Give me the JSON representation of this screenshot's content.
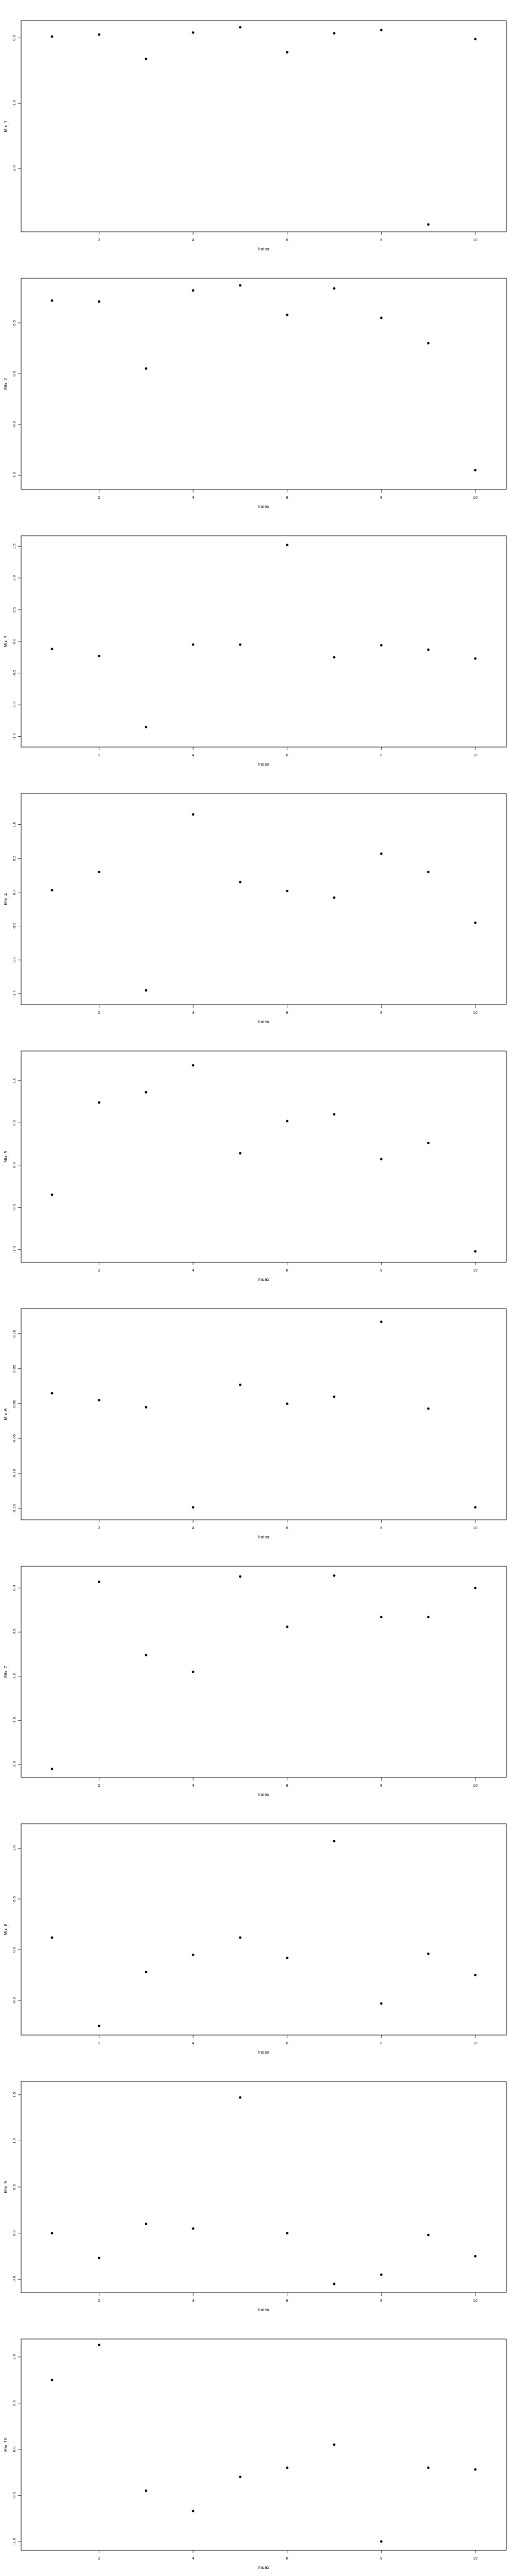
{
  "chart_data": [
    {
      "type": "scatter",
      "xlabel": "Index",
      "ylabel": "Mix_1",
      "xlim": [
        1,
        10
      ],
      "x_ticks": [
        2,
        4,
        6,
        8,
        10
      ],
      "x_tick_labels": [
        "2",
        "4",
        "6",
        "8",
        "10"
      ],
      "ylim": [
        -2.9,
        0.2
      ],
      "y_ticks": [
        0,
        -1,
        -2
      ],
      "y_tick_labels": [
        "0.0",
        "-1.0",
        "-2.0"
      ],
      "x": [
        1,
        2,
        3,
        4,
        5,
        6,
        7,
        8,
        9,
        10
      ],
      "y": [
        0.02,
        0.05,
        -0.32,
        0.08,
        0.16,
        -0.22,
        0.07,
        0.12,
        -2.85,
        -0.02
      ]
    },
    {
      "type": "scatter",
      "xlabel": "Index",
      "ylabel": "Mix_2",
      "xlim": [
        1,
        10
      ],
      "x_ticks": [
        2,
        4,
        6,
        8,
        10
      ],
      "x_tick_labels": [
        "2",
        "4",
        "6",
        "8",
        "10"
      ],
      "ylim": [
        -1.1,
        0.9
      ],
      "y_ticks": [
        -1.0,
        -0.5,
        0.0,
        0.5
      ],
      "y_tick_labels": [
        "-1.0",
        "-0.5",
        "0.0",
        "0.5"
      ],
      "x": [
        1,
        2,
        3,
        4,
        5,
        6,
        7,
        8,
        9,
        10
      ],
      "y": [
        0.72,
        0.71,
        0.05,
        0.82,
        0.87,
        0.58,
        0.84,
        0.55,
        0.3,
        -0.95
      ]
    },
    {
      "type": "scatter",
      "xlabel": "Index",
      "ylabel": "Mix_3",
      "xlim": [
        1,
        10
      ],
      "x_ticks": [
        2,
        4,
        6,
        8,
        10
      ],
      "x_tick_labels": [
        "2",
        "4",
        "6",
        "8",
        "10"
      ],
      "ylim": [
        -1.6,
        1.6
      ],
      "y_ticks": [
        -1.5,
        -1.0,
        -0.5,
        0.0,
        0.5,
        1.0,
        1.5
      ],
      "y_tick_labels": [
        "-1.5",
        "-1.0",
        "-0.5",
        "0.0",
        "0.5",
        "1.0",
        "1.5"
      ],
      "x": [
        1,
        2,
        3,
        4,
        5,
        6,
        7,
        8,
        9,
        10
      ],
      "y": [
        -0.12,
        -0.23,
        -1.35,
        -0.05,
        -0.05,
        1.52,
        -0.25,
        -0.06,
        -0.13,
        -0.27
      ]
    },
    {
      "type": "scatter",
      "xlabel": "Index",
      "ylabel": "Mix_4",
      "xlim": [
        1,
        10
      ],
      "x_ticks": [
        2,
        4,
        6,
        8,
        10
      ],
      "x_tick_labels": [
        "2",
        "4",
        "6",
        "8",
        "10"
      ],
      "ylim": [
        -1.6,
        1.4
      ],
      "y_ticks": [
        -1.5,
        -1.0,
        -0.5,
        0.0,
        0.5,
        1.0
      ],
      "y_tick_labels": [
        "-1.5",
        "-1.0",
        "-0.5",
        "0.0",
        "0.5",
        "1.0"
      ],
      "x": [
        1,
        2,
        3,
        4,
        5,
        6,
        7,
        8,
        9,
        10
      ],
      "y": [
        0.03,
        0.3,
        -1.45,
        1.15,
        0.15,
        0.02,
        -0.08,
        0.57,
        0.3,
        -0.45
      ]
    },
    {
      "type": "scatter",
      "xlabel": "Index",
      "ylabel": "Mix_5",
      "xlim": [
        1,
        10
      ],
      "x_ticks": [
        2,
        4,
        6,
        8,
        10
      ],
      "x_tick_labels": [
        "2",
        "4",
        "6",
        "8",
        "10"
      ],
      "ylim": [
        -1.1,
        1.3
      ],
      "y_ticks": [
        -1.0,
        -0.5,
        0.0,
        0.5,
        1.0
      ],
      "y_tick_labels": [
        "-1.0",
        "-0.5",
        "0.0",
        "0.5",
        "1.0"
      ],
      "x": [
        1,
        2,
        3,
        4,
        5,
        6,
        7,
        8,
        9,
        10
      ],
      "y": [
        -0.35,
        0.74,
        0.86,
        1.18,
        0.14,
        0.52,
        0.6,
        0.07,
        0.26,
        -1.02
      ]
    },
    {
      "type": "scatter",
      "xlabel": "Index",
      "ylabel": "Mix_6",
      "xlim": [
        1,
        10
      ],
      "x_ticks": [
        2,
        4,
        6,
        8,
        10
      ],
      "x_tick_labels": [
        "2",
        "4",
        "6",
        "8",
        "10"
      ],
      "ylim": [
        -0.16,
        0.13
      ],
      "y_ticks": [
        -0.15,
        -0.1,
        -0.05,
        0.0,
        0.05,
        0.1
      ],
      "y_tick_labels": [
        "-0.15",
        "-0.10",
        "-0.05",
        "0.00",
        "0.05",
        "0.10"
      ],
      "x": [
        1,
        2,
        3,
        4,
        5,
        6,
        7,
        8,
        9,
        10
      ],
      "y": [
        0.015,
        0.005,
        -0.005,
        -0.148,
        0.027,
        0.0,
        0.01,
        0.117,
        -0.007,
        -0.148
      ]
    },
    {
      "type": "scatter",
      "xlabel": "Index",
      "ylabel": "Mix_7",
      "xlim": [
        1,
        10
      ],
      "x_ticks": [
        2,
        4,
        6,
        8,
        10
      ],
      "x_tick_labels": [
        "2",
        "4",
        "6",
        "8",
        "10"
      ],
      "ylim": [
        -2.1,
        0.2
      ],
      "y_ticks": [
        -2.0,
        -1.5,
        -1.0,
        -0.5,
        0.0
      ],
      "y_tick_labels": [
        "-2.0",
        "-1.5",
        "-1.0",
        "-0.5",
        "0.0"
      ],
      "x": [
        1,
        2,
        3,
        4,
        5,
        6,
        7,
        8,
        9,
        10
      ],
      "y": [
        -2.05,
        0.07,
        -0.76,
        -0.95,
        0.13,
        -0.44,
        0.14,
        -0.33,
        -0.33,
        0.0
      ]
    },
    {
      "type": "scatter",
      "xlabel": "Index",
      "ylabel": "Mix_8",
      "xlim": [
        1,
        10
      ],
      "x_ticks": [
        2,
        4,
        6,
        8,
        10
      ],
      "x_tick_labels": [
        "2",
        "4",
        "6",
        "8",
        "10"
      ],
      "ylim": [
        -0.8,
        1.2
      ],
      "y_ticks": [
        -0.5,
        0.0,
        0.5,
        1.0
      ],
      "y_tick_labels": [
        "-0.5",
        "0.0",
        "0.5",
        "1.0"
      ],
      "x": [
        1,
        2,
        3,
        4,
        5,
        6,
        7,
        8,
        9,
        10
      ],
      "y": [
        0.12,
        -0.75,
        -0.22,
        -0.05,
        0.12,
        -0.08,
        1.07,
        -0.53,
        -0.04,
        -0.25
      ]
    },
    {
      "type": "scatter",
      "xlabel": "Index",
      "ylabel": "Mix_9",
      "xlim": [
        1,
        10
      ],
      "x_ticks": [
        2,
        4,
        6,
        8,
        10
      ],
      "x_tick_labels": [
        "2",
        "4",
        "6",
        "8",
        "10"
      ],
      "ylim": [
        -0.6,
        1.6
      ],
      "y_ticks": [
        -0.5,
        0.0,
        0.5,
        1.0,
        1.5
      ],
      "y_tick_labels": [
        "-0.5",
        "0.0",
        "0.5",
        "1.0",
        "1.5"
      ],
      "x": [
        1,
        2,
        3,
        4,
        5,
        6,
        7,
        8,
        9,
        10
      ],
      "y": [
        0.0,
        -0.27,
        0.1,
        0.05,
        1.47,
        0.0,
        -0.55,
        -0.45,
        -0.02,
        -0.25
      ]
    },
    {
      "type": "scatter",
      "xlabel": "Index",
      "ylabel": "Mix_10",
      "xlim": [
        1,
        10
      ],
      "x_ticks": [
        2,
        4,
        6,
        8,
        10
      ],
      "x_tick_labels": [
        "2",
        "4",
        "6",
        "8",
        "10"
      ],
      "ylim": [
        -1.05,
        1.15
      ],
      "y_ticks": [
        -1.0,
        -0.5,
        0.0,
        0.5,
        1.0
      ],
      "y_tick_labels": [
        "-1.0",
        "-0.5",
        "0.0",
        "0.5",
        "1.0"
      ],
      "x": [
        1,
        2,
        3,
        4,
        5,
        6,
        7,
        8,
        9,
        10
      ],
      "y": [
        0.75,
        1.13,
        -0.45,
        -0.67,
        -0.3,
        -0.2,
        0.05,
        -1.0,
        -0.2,
        -0.22
      ]
    }
  ]
}
